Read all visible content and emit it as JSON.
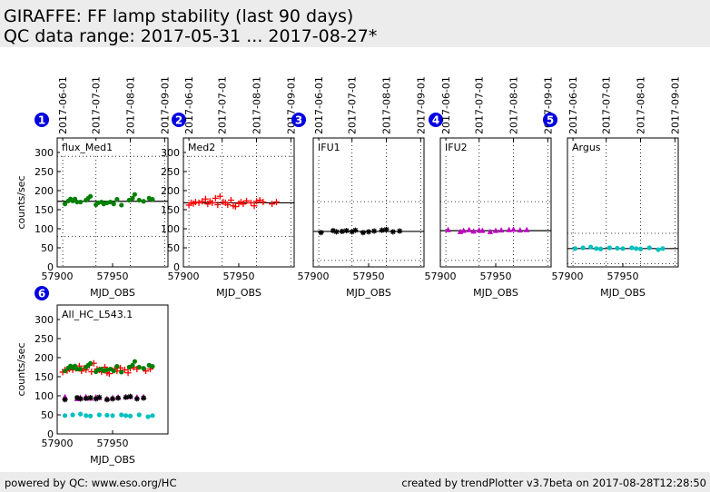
{
  "header": {
    "title": "GIRAFFE: FF lamp stability (last 90 days)",
    "subtitle": "QC data range: 2017-05-31 ... 2017-08-27*"
  },
  "footer": {
    "left": "powered by QC: www.eso.org/HC",
    "right": "created by trendPlotter v3.7beta on 2017-08-28T12:28:50"
  },
  "chart_data": [
    {
      "type": "scatter",
      "number": "1",
      "title": "flux_Med1",
      "xlabel": "MJD_OBS",
      "ylabel": "counts/sec",
      "xlim": [
        57900,
        58000
      ],
      "ylim": [
        0,
        338
      ],
      "xticks": [
        57900,
        57950
      ],
      "yticks": [
        0,
        50,
        100,
        150,
        200,
        250,
        300
      ],
      "date_ticks": [
        {
          "value": 57905,
          "label": "2017-06-01"
        },
        {
          "value": 57935,
          "label": "2017-07-01"
        },
        {
          "value": 57966,
          "label": "2017-08-01"
        },
        {
          "value": 57997,
          "label": "2017-09-01"
        }
      ],
      "series": [
        {
          "color": "#008000",
          "marker": "circle",
          "mean": 172,
          "limits": [
            80,
            290
          ],
          "x": [
            57907,
            57910,
            57912,
            57914,
            57916,
            57918,
            57921,
            57926,
            57928,
            57930,
            57935,
            57937,
            57940,
            57942,
            57945,
            57948,
            57951,
            57954,
            57958,
            57965,
            57968,
            57970,
            57974,
            57978,
            57983,
            57986
          ],
          "values": [
            165,
            173,
            178,
            173,
            178,
            170,
            170,
            175,
            180,
            185,
            163,
            168,
            170,
            165,
            168,
            170,
            165,
            177,
            162,
            175,
            180,
            190,
            175,
            172,
            180,
            177
          ]
        }
      ]
    },
    {
      "type": "scatter",
      "number": "2",
      "title": "Med2",
      "xlabel": "MJD_OBS",
      "xlim": [
        57900,
        58000
      ],
      "ylim": [
        0,
        338
      ],
      "xticks": [
        57900,
        57950
      ],
      "yticks": [
        0,
        50,
        100,
        150,
        200,
        250,
        300
      ],
      "date_ticks": [
        {
          "value": 57905,
          "label": "2017-06-01"
        },
        {
          "value": 57935,
          "label": "2017-07-01"
        },
        {
          "value": 57966,
          "label": "2017-08-01"
        },
        {
          "value": 57997,
          "label": "2017-09-01"
        }
      ],
      "series": [
        {
          "color": "#ff0000",
          "marker": "plus",
          "mean": 168,
          "limits": [
            80,
            290
          ],
          "x": [
            57905,
            57907,
            57909,
            57911,
            57914,
            57917,
            57920,
            57922,
            57924,
            57926,
            57929,
            57931,
            57933,
            57936,
            57938,
            57940,
            57943,
            57945,
            57947,
            57950,
            57952,
            57954,
            57957,
            57961,
            57964,
            57966,
            57969,
            57972,
            57980,
            57984
          ],
          "values": [
            162,
            168,
            166,
            170,
            168,
            172,
            178,
            165,
            172,
            168,
            180,
            163,
            185,
            170,
            168,
            163,
            175,
            160,
            158,
            166,
            170,
            165,
            173,
            168,
            160,
            172,
            175,
            170,
            165,
            170
          ]
        }
      ]
    },
    {
      "type": "scatter",
      "number": "3",
      "title": "IFU1",
      "xlabel": "MJD_OBS",
      "xlim": [
        57900,
        58000
      ],
      "ylim": [
        0,
        338
      ],
      "xticks": [
        57900,
        57950
      ],
      "date_ticks": [
        {
          "value": 57905,
          "label": "2017-06-01"
        },
        {
          "value": 57935,
          "label": "2017-07-01"
        },
        {
          "value": 57966,
          "label": "2017-08-01"
        },
        {
          "value": 57997,
          "label": "2017-09-01"
        }
      ],
      "series": [
        {
          "color": "#000000",
          "marker": "star",
          "mean": 93,
          "limits": [
            17,
            171
          ],
          "x": [
            57907,
            57918,
            57921,
            57926,
            57930,
            57935,
            57938,
            57945,
            57950,
            57955,
            57962,
            57966,
            57972,
            57978
          ],
          "values": [
            90,
            95,
            92,
            93,
            95,
            92,
            96,
            90,
            92,
            94,
            96,
            98,
            92,
            94
          ]
        }
      ]
    },
    {
      "type": "scatter",
      "number": "4",
      "title": "IFU2",
      "xlabel": "MJD_OBS",
      "xlim": [
        57900,
        58000
      ],
      "ylim": [
        0,
        338
      ],
      "xticks": [
        57900,
        57950
      ],
      "date_ticks": [
        {
          "value": 57905,
          "label": "2017-06-01"
        },
        {
          "value": 57935,
          "label": "2017-07-01"
        },
        {
          "value": 57966,
          "label": "2017-08-01"
        },
        {
          "value": 57997,
          "label": "2017-09-01"
        }
      ],
      "series": [
        {
          "color": "#bf00bf",
          "marker": "triangle",
          "mean": 95,
          "limits": [
            17,
            171
          ],
          "x": [
            57907,
            57918,
            57921,
            57926,
            57930,
            57935,
            57938,
            57945,
            57950,
            57955,
            57962,
            57966,
            57972,
            57978
          ],
          "values": [
            97,
            92,
            95,
            97,
            93,
            96,
            95,
            92,
            95,
            96,
            97,
            98,
            96,
            97
          ]
        }
      ]
    },
    {
      "type": "scatter",
      "number": "5",
      "title": "Argus",
      "xlabel": "MJD_OBS",
      "xlim": [
        57900,
        58000
      ],
      "ylim": [
        0,
        338
      ],
      "xticks": [
        57900,
        57950
      ],
      "date_ticks": [
        {
          "value": 57905,
          "label": "2017-06-01"
        },
        {
          "value": 57935,
          "label": "2017-07-01"
        },
        {
          "value": 57966,
          "label": "2017-08-01"
        },
        {
          "value": 57997,
          "label": "2017-09-01"
        }
      ],
      "series": [
        {
          "color": "#00bfbf",
          "marker": "circle",
          "mean": 48,
          "limits": [
            8,
            88
          ],
          "x": [
            57907,
            57914,
            57921,
            57926,
            57930,
            57938,
            57945,
            57950,
            57958,
            57962,
            57966,
            57974,
            57982,
            57986
          ],
          "values": [
            48,
            50,
            52,
            48,
            47,
            50,
            49,
            48,
            50,
            48,
            47,
            50,
            45,
            48
          ]
        }
      ]
    },
    {
      "type": "scatter",
      "number": "6",
      "title": "All_HC_L543.1",
      "xlabel": "MJD_OBS",
      "ylabel": "counts/sec",
      "xlim": [
        57900,
        58000
      ],
      "ylim": [
        0,
        338
      ],
      "xticks": [
        57900,
        57950
      ],
      "yticks": [
        0,
        50,
        100,
        150,
        200,
        250,
        300
      ],
      "series": [
        {
          "color": "#00bfbf",
          "marker": "circle",
          "x": [
            57907,
            57914,
            57921,
            57926,
            57930,
            57938,
            57945,
            57950,
            57958,
            57962,
            57966,
            57974,
            57982,
            57986
          ],
          "values": [
            48,
            50,
            52,
            48,
            47,
            50,
            49,
            48,
            50,
            48,
            47,
            50,
            45,
            48
          ]
        },
        {
          "color": "#bf00bf",
          "marker": "triangle",
          "x": [
            57907,
            57918,
            57921,
            57926,
            57930,
            57935,
            57938,
            57945,
            57950,
            57955,
            57962,
            57966,
            57972,
            57978
          ],
          "values": [
            97,
            92,
            95,
            97,
            93,
            96,
            95,
            92,
            95,
            96,
            97,
            98,
            96,
            97
          ]
        },
        {
          "color": "#000000",
          "marker": "star",
          "x": [
            57907,
            57918,
            57921,
            57926,
            57930,
            57935,
            57938,
            57945,
            57950,
            57955,
            57962,
            57966,
            57972,
            57978
          ],
          "values": [
            90,
            95,
            92,
            93,
            95,
            92,
            96,
            90,
            92,
            94,
            96,
            98,
            92,
            94
          ]
        },
        {
          "color": "#ff0000",
          "marker": "plus",
          "x": [
            57905,
            57907,
            57909,
            57911,
            57914,
            57917,
            57920,
            57922,
            57924,
            57926,
            57929,
            57931,
            57933,
            57936,
            57938,
            57940,
            57943,
            57945,
            57947,
            57950,
            57952,
            57954,
            57957,
            57961,
            57964,
            57966,
            57969,
            57972,
            57980,
            57984
          ],
          "values": [
            162,
            168,
            166,
            170,
            168,
            172,
            178,
            165,
            172,
            168,
            180,
            163,
            185,
            170,
            168,
            163,
            175,
            160,
            158,
            166,
            170,
            165,
            173,
            168,
            160,
            172,
            175,
            170,
            165,
            170
          ]
        },
        {
          "color": "#008000",
          "marker": "circle",
          "x": [
            57907,
            57910,
            57912,
            57914,
            57916,
            57918,
            57921,
            57926,
            57928,
            57930,
            57935,
            57937,
            57940,
            57942,
            57945,
            57948,
            57951,
            57954,
            57958,
            57965,
            57968,
            57970,
            57974,
            57978,
            57983,
            57986
          ],
          "values": [
            165,
            173,
            178,
            173,
            178,
            170,
            170,
            175,
            180,
            185,
            163,
            168,
            170,
            165,
            168,
            170,
            165,
            177,
            162,
            175,
            180,
            190,
            175,
            172,
            180,
            177
          ]
        }
      ]
    }
  ]
}
